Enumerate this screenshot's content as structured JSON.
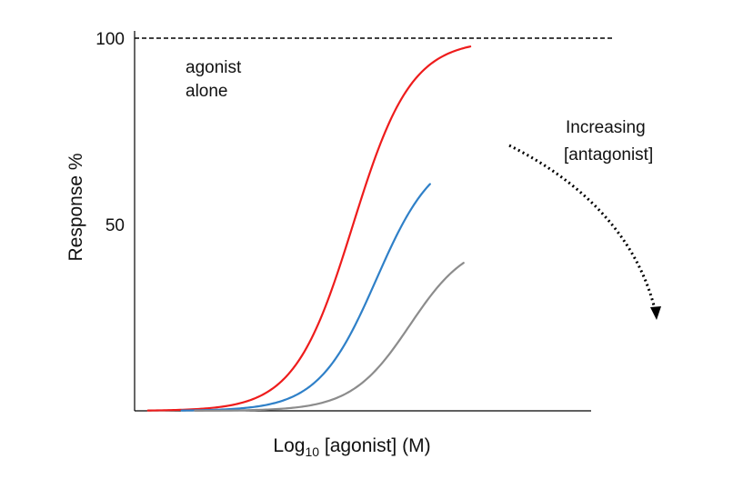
{
  "chart_data": {
    "type": "line",
    "xlabel": "Log",
    "xlabel_sub": "10",
    "xlabel_rest": " [agonist] (M)",
    "ylabel": "Response %",
    "ylim": [
      0,
      100
    ],
    "yticks": [
      {
        "value": 100,
        "label": "100"
      },
      {
        "value": 50,
        "label": "50"
      }
    ],
    "reference_line": {
      "value": 100,
      "style": "dashed",
      "color": "#000000"
    },
    "series": [
      {
        "max": 99.5,
        "ec50": -6.55,
        "color": "#ee1c1c",
        "x_start": -9.6,
        "x_end": -4.8
      },
      {
        "max": 70.5,
        "ec50": -6.2,
        "color": "#2f80c8",
        "x_start": -9.1,
        "x_end": -5.4
      },
      {
        "max": 46,
        "ec50": -5.7,
        "color": "#8c8c8c",
        "x_start": -8.9,
        "x_end": -4.9
      }
    ],
    "hill_slope": 1.0,
    "xlim": [
      -9.8,
      -3.0
    ],
    "annotations": {
      "agonist_alone": [
        "agonist",
        "alone"
      ],
      "antagonist_arrow": [
        "Increasing",
        "[antagonist]"
      ]
    },
    "grid": false,
    "legend": "none"
  }
}
